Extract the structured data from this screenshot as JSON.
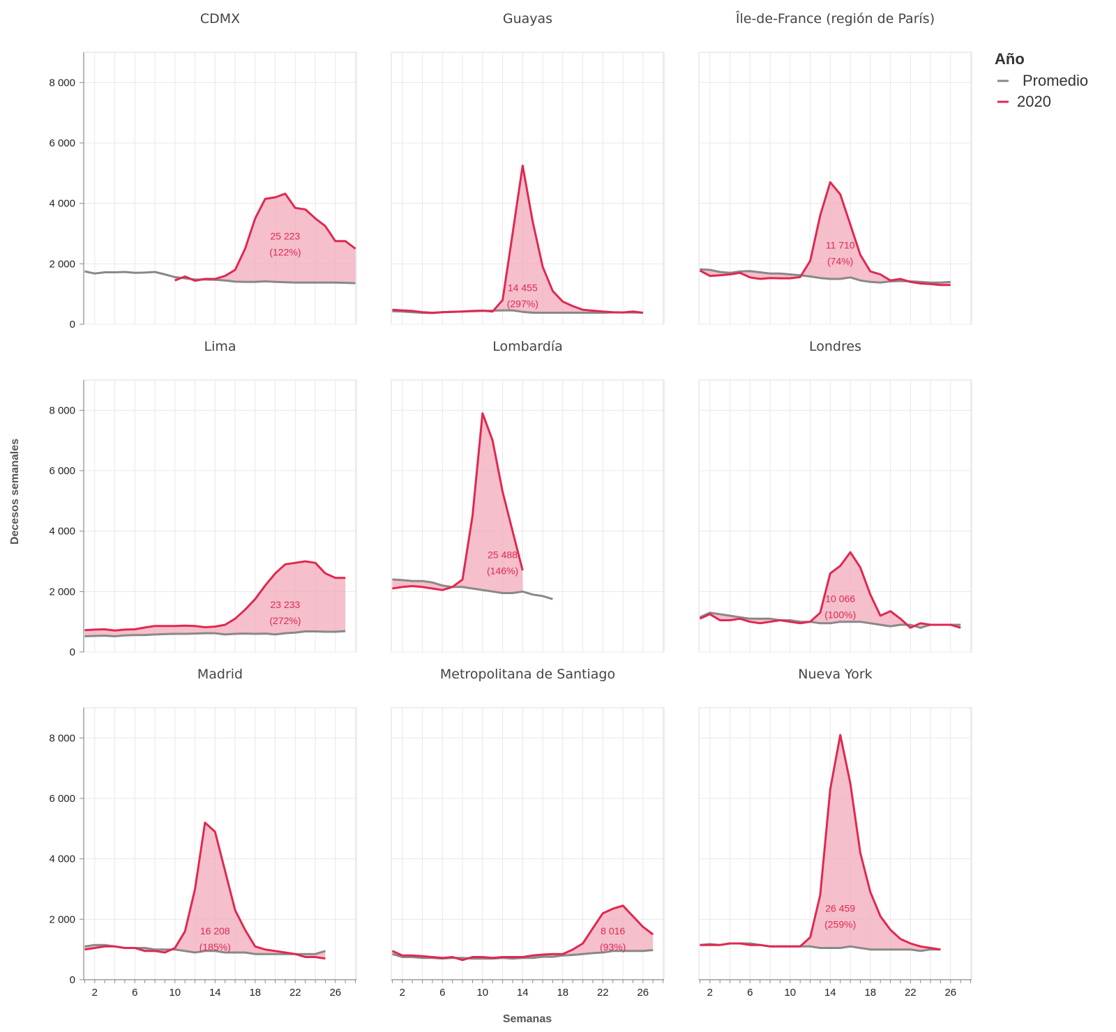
{
  "chart_data": {
    "type": "area",
    "xlabel": "Semanas",
    "ylabel": "Decesos semanales",
    "x_ticks": [
      2,
      6,
      10,
      14,
      18,
      22,
      26
    ],
    "y_ticks": [
      0,
      2000,
      4000,
      6000,
      8000
    ],
    "y_tick_labels": [
      "0",
      "2 000",
      "4 000",
      "6 000",
      "8 000"
    ],
    "xlim": [
      0.9,
      28.1
    ],
    "ylim": [
      0,
      9000
    ],
    "legend": {
      "title": "Año",
      "position": "top-right",
      "items": [
        {
          "label": "Promedio",
          "color": "#888888"
        },
        {
          "label": "2020",
          "color": "#e0284f"
        }
      ]
    },
    "colors": {
      "promedio": "#888888",
      "y2020": "#e0284f",
      "fill": "#f2aabb",
      "grid": "#e8e8e8"
    },
    "panels": [
      {
        "name": "CDMX",
        "weeks": [
          1,
          2,
          3,
          4,
          5,
          6,
          7,
          8,
          9,
          10,
          11,
          12,
          13,
          14,
          15,
          16,
          17,
          18,
          19,
          20,
          21,
          22,
          23,
          24,
          25,
          26,
          27,
          28
        ],
        "promedio": [
          1750,
          1680,
          1720,
          1720,
          1730,
          1700,
          1710,
          1730,
          1650,
          1560,
          1520,
          1480,
          1480,
          1470,
          1450,
          1410,
          1400,
          1400,
          1420,
          1400,
          1390,
          1380,
          1380,
          1380,
          1380,
          1380,
          1370,
          1360
        ],
        "y2020": [
          null,
          null,
          null,
          null,
          null,
          null,
          null,
          null,
          null,
          1450,
          1580,
          1440,
          1500,
          1500,
          1600,
          1800,
          2500,
          3500,
          4150,
          4200,
          4320,
          3850,
          3800,
          3500,
          3250,
          2750,
          2750,
          2500
        ],
        "annotation": {
          "value": "25 223",
          "pct": "(122%)",
          "x": 21,
          "y": 2800
        }
      },
      {
        "name": "Guayas",
        "weeks": [
          1,
          2,
          3,
          4,
          5,
          6,
          7,
          8,
          9,
          10,
          11,
          12,
          13,
          14,
          15,
          16,
          17,
          18,
          19,
          20,
          21,
          22,
          23,
          24,
          25,
          26
        ],
        "promedio": [
          430,
          420,
          400,
          380,
          370,
          400,
          410,
          420,
          430,
          440,
          450,
          460,
          460,
          410,
          380,
          380,
          380,
          380,
          380,
          380,
          380,
          380,
          390,
          390,
          390,
          380
        ],
        "y2020": [
          480,
          460,
          440,
          400,
          380,
          400,
          410,
          420,
          440,
          450,
          420,
          800,
          3000,
          5250,
          3400,
          1900,
          1100,
          750,
          600,
          480,
          450,
          420,
          400,
          390,
          420,
          380
        ],
        "annotation": {
          "value": "14 455",
          "pct": "(297%)",
          "x": 14,
          "y": 1100
        }
      },
      {
        "name": "Île-de-France (región de París)",
        "weeks": [
          1,
          2,
          3,
          4,
          5,
          6,
          7,
          8,
          9,
          10,
          11,
          12,
          13,
          14,
          15,
          16,
          17,
          18,
          19,
          20,
          21,
          22,
          23,
          24,
          25,
          26
        ],
        "promedio": [
          1820,
          1800,
          1730,
          1700,
          1750,
          1760,
          1720,
          1680,
          1680,
          1650,
          1620,
          1580,
          1530,
          1500,
          1500,
          1550,
          1450,
          1400,
          1380,
          1420,
          1430,
          1420,
          1400,
          1380,
          1380,
          1400
        ],
        "y2020": [
          1780,
          1600,
          1620,
          1650,
          1700,
          1550,
          1500,
          1530,
          1520,
          1520,
          1560,
          2100,
          3600,
          4700,
          4300,
          3300,
          2300,
          1750,
          1650,
          1450,
          1500,
          1400,
          1350,
          1330,
          1300,
          1300
        ],
        "annotation": {
          "value": "11 710",
          "pct": "(74%)",
          "x": 15,
          "y": 2500
        }
      },
      {
        "name": "Lima",
        "weeks": [
          1,
          2,
          3,
          4,
          5,
          6,
          7,
          8,
          9,
          10,
          11,
          12,
          13,
          14,
          15,
          16,
          17,
          18,
          19,
          20,
          21,
          22,
          23,
          24,
          25,
          26,
          27
        ],
        "promedio": [
          520,
          530,
          540,
          520,
          550,
          560,
          560,
          580,
          590,
          600,
          600,
          610,
          620,
          620,
          580,
          600,
          610,
          600,
          610,
          580,
          620,
          640,
          680,
          680,
          670,
          670,
          690
        ],
        "y2020": [
          720,
          740,
          750,
          710,
          740,
          750,
          810,
          860,
          860,
          860,
          870,
          860,
          820,
          840,
          900,
          1100,
          1400,
          1750,
          2200,
          2600,
          2900,
          2950,
          3000,
          2950,
          2600,
          2450,
          2450
        ],
        "annotation": {
          "value": "23 233",
          "pct": "(272%)",
          "x": 21,
          "y": 1450
        }
      },
      {
        "name": "Lombardía",
        "weeks": [
          1,
          2,
          3,
          4,
          5,
          6,
          7,
          8,
          9,
          10,
          11,
          12,
          13,
          14,
          15,
          16,
          17
        ],
        "promedio": [
          2400,
          2380,
          2350,
          2350,
          2300,
          2200,
          2150,
          2150,
          2100,
          2050,
          2000,
          1950,
          1950,
          2000,
          1900,
          1850,
          1750
        ],
        "y2020": [
          2100,
          2150,
          2180,
          2150,
          2100,
          2050,
          2150,
          2400,
          4500,
          7900,
          7000,
          5300,
          4000,
          2700,
          null,
          null,
          null
        ],
        "annotation": {
          "value": "25 488",
          "pct": "(146%)",
          "x": 12,
          "y": 3100
        }
      },
      {
        "name": "Londres",
        "weeks": [
          1,
          2,
          3,
          4,
          5,
          6,
          7,
          8,
          9,
          10,
          11,
          12,
          13,
          14,
          15,
          16,
          17,
          18,
          19,
          20,
          21,
          22,
          23,
          24,
          25,
          26,
          27
        ],
        "promedio": [
          1150,
          1300,
          1250,
          1200,
          1150,
          1100,
          1100,
          1100,
          1050,
          1050,
          1000,
          1000,
          950,
          950,
          1000,
          1000,
          1000,
          950,
          900,
          850,
          900,
          900,
          800,
          900,
          900,
          900,
          900
        ],
        "y2020": [
          1100,
          1250,
          1050,
          1050,
          1100,
          1000,
          950,
          1000,
          1050,
          1000,
          950,
          1000,
          1300,
          2600,
          2850,
          3300,
          2800,
          1900,
          1200,
          1350,
          1100,
          800,
          950,
          900,
          900,
          900,
          800
        ],
        "annotation": {
          "value": "10 066",
          "pct": "(100%)",
          "x": 15,
          "y": 1650
        }
      },
      {
        "name": "Madrid",
        "weeks": [
          1,
          2,
          3,
          4,
          5,
          6,
          7,
          8,
          9,
          10,
          11,
          12,
          13,
          14,
          15,
          16,
          17,
          18,
          19,
          20,
          21,
          22,
          23,
          24,
          25
        ],
        "promedio": [
          1100,
          1150,
          1150,
          1100,
          1050,
          1050,
          1050,
          1000,
          1000,
          1000,
          950,
          900,
          950,
          950,
          900,
          900,
          900,
          850,
          850,
          850,
          850,
          850,
          850,
          850,
          950
        ],
        "y2020": [
          1000,
          1050,
          1100,
          1100,
          1050,
          1050,
          950,
          950,
          900,
          1050,
          1600,
          3000,
          5200,
          4900,
          3600,
          2300,
          1650,
          1100,
          1000,
          950,
          900,
          850,
          750,
          750,
          700
        ],
        "annotation": {
          "value": "16 208",
          "pct": "(185%)",
          "x": 14,
          "y": 1500
        }
      },
      {
        "name": "Metropolitana de Santiago",
        "weeks": [
          1,
          2,
          3,
          4,
          5,
          6,
          7,
          8,
          9,
          10,
          11,
          12,
          13,
          14,
          15,
          16,
          17,
          18,
          19,
          20,
          21,
          22,
          23,
          24,
          25,
          26,
          27
        ],
        "promedio": [
          850,
          750,
          750,
          720,
          720,
          700,
          720,
          720,
          700,
          700,
          700,
          720,
          700,
          720,
          720,
          760,
          760,
          800,
          820,
          850,
          880,
          900,
          950,
          950,
          950,
          950,
          980
        ],
        "y2020": [
          950,
          800,
          800,
          780,
          750,
          720,
          750,
          650,
          750,
          750,
          720,
          750,
          750,
          750,
          800,
          830,
          850,
          850,
          1000,
          1200,
          1700,
          2200,
          2350,
          2450,
          2100,
          1750,
          1500
        ],
        "annotation": {
          "value": "8 016",
          "pct": "(93%)",
          "x": 23,
          "y": 1500
        }
      },
      {
        "name": "Nueva York",
        "weeks": [
          1,
          2,
          3,
          4,
          5,
          6,
          7,
          8,
          9,
          10,
          11,
          12,
          13,
          14,
          15,
          16,
          17,
          18,
          19,
          20,
          21,
          22,
          23,
          24,
          25
        ],
        "promedio": [
          1150,
          1180,
          1150,
          1200,
          1200,
          1200,
          1150,
          1100,
          1100,
          1100,
          1100,
          1100,
          1050,
          1050,
          1050,
          1100,
          1050,
          1000,
          1000,
          1000,
          1000,
          1000,
          950,
          1000,
          1000
        ],
        "y2020": [
          1150,
          1150,
          1150,
          1200,
          1200,
          1150,
          1150,
          1100,
          1100,
          1100,
          1100,
          1400,
          2800,
          6300,
          8100,
          6500,
          4200,
          2900,
          2100,
          1650,
          1350,
          1200,
          1100,
          1050,
          1000
        ],
        "annotation": {
          "value": "26 459",
          "pct": "(259%)",
          "x": 15,
          "y": 2250
        }
      }
    ]
  }
}
